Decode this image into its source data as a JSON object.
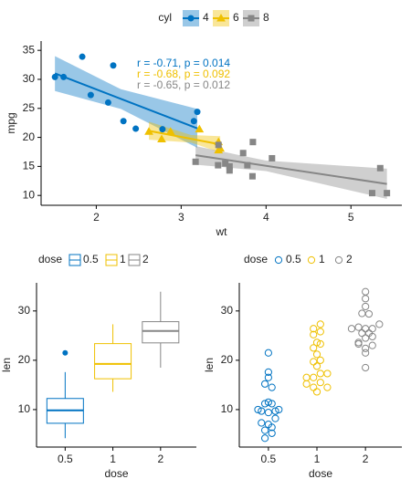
{
  "chart_data": [
    {
      "type": "scatter",
      "legend_title": "cyl",
      "x_label": "wt",
      "y_label": "mpg",
      "xlim": [
        1.35,
        5.6
      ],
      "ylim": [
        8.3,
        36.6
      ],
      "xticks": [
        2,
        3,
        4,
        5
      ],
      "yticks": [
        10,
        15,
        20,
        25,
        30,
        35
      ],
      "series": [
        {
          "name": "4",
          "color": "#0073C2",
          "marker": "circle",
          "annotation": "r = -0.71, p = 0.014",
          "x": [
            2.32,
            3.19,
            3.15,
            2.2,
            1.615,
            1.835,
            2.465,
            1.935,
            2.14,
            1.513,
            2.78
          ],
          "y": [
            22.8,
            24.4,
            22.8,
            32.4,
            30.4,
            33.9,
            21.5,
            27.3,
            26.0,
            30.4,
            21.4
          ],
          "fit": {
            "x": [
              1.513,
              3.19
            ],
            "y": [
              31.03,
              21.56
            ]
          },
          "band": {
            "x": [
              1.513,
              2.29,
              3.19
            ],
            "lower": [
              28.0,
              24.9,
              18.2
            ],
            "upper": [
              34.0,
              28.3,
              24.9
            ]
          }
        },
        {
          "name": "6",
          "color": "#EFC000",
          "marker": "triangle",
          "annotation": "r = -0.68, p = 0.092",
          "x": [
            2.62,
            2.875,
            3.215,
            3.46,
            3.44,
            3.44,
            2.77
          ],
          "y": [
            21.0,
            21.0,
            21.4,
            18.1,
            19.2,
            17.8,
            19.7
          ],
          "fit": {
            "x": [
              2.62,
              3.46
            ],
            "y": [
              21.13,
              18.79
            ]
          },
          "band": {
            "x": [
              2.62,
              3.117,
              3.46
            ],
            "lower": [
              19.6,
              19.1,
              17.4
            ],
            "upper": [
              22.7,
              20.4,
              20.2
            ]
          }
        },
        {
          "name": "8",
          "color": "#868686",
          "marker": "square",
          "annotation": "r = -0.65, p = 0.012",
          "x": [
            3.44,
            3.57,
            4.07,
            3.73,
            3.78,
            5.25,
            5.424,
            5.345,
            3.52,
            3.435,
            3.84,
            3.845,
            3.17,
            3.57
          ],
          "y": [
            18.7,
            14.3,
            16.4,
            17.3,
            15.2,
            10.4,
            10.4,
            14.7,
            15.5,
            15.2,
            13.3,
            19.2,
            15.8,
            15.0
          ],
          "fit": {
            "x": [
              3.17,
              5.424
            ],
            "y": [
              16.92,
              11.98
            ]
          },
          "band": {
            "x": [
              3.17,
              3.999,
              5.424
            ],
            "lower": [
              15.3,
              14.2,
              9.4
            ],
            "upper": [
              18.5,
              16.0,
              14.6
            ]
          }
        }
      ]
    },
    {
      "type": "box",
      "legend_title": "dose",
      "x_label": "dose",
      "y_label": "len",
      "categories": [
        "0.5",
        "1",
        "2"
      ],
      "colors": [
        "#0073C2",
        "#EFC000",
        "#868686"
      ],
      "ylim": [
        2.4,
        35.7
      ],
      "yticks": [
        10,
        20,
        30
      ],
      "boxes": [
        {
          "min": 4.2,
          "q1": 7.225,
          "median": 9.85,
          "q3": 12.25,
          "max": 17.6,
          "outliers": [
            21.5
          ]
        },
        {
          "min": 13.6,
          "q1": 16.25,
          "median": 19.25,
          "q3": 23.375,
          "max": 27.3,
          "outliers": []
        },
        {
          "min": 18.5,
          "q1": 23.525,
          "median": 25.95,
          "q3": 27.825,
          "max": 33.9,
          "outliers": []
        }
      ]
    },
    {
      "type": "dotplot",
      "legend_title": "dose",
      "x_label": "dose",
      "y_label": "len",
      "categories": [
        "0.5",
        "1",
        "2"
      ],
      "colors": [
        "#0073C2",
        "#EFC000",
        "#868686"
      ],
      "ylim": [
        2.4,
        35.7
      ],
      "yticks": [
        10,
        20,
        30
      ],
      "values": [
        [
          4.2,
          11.5,
          7.3,
          5.8,
          6.4,
          10,
          11.2,
          11.2,
          5.2,
          7,
          15.2,
          21.5,
          17.6,
          9.7,
          14.5,
          10,
          8.2,
          9.4,
          16.5,
          9.7
        ],
        [
          16.5,
          16.5,
          15.2,
          17.3,
          22.5,
          17.3,
          13.6,
          14.5,
          18.8,
          15.5,
          19.7,
          23.3,
          23.6,
          26.4,
          20,
          25.2,
          25.8,
          21.2,
          14.5,
          27.3
        ],
        [
          23.6,
          18.5,
          33.9,
          25.5,
          26.4,
          32.5,
          26.7,
          21.5,
          23.3,
          29.5,
          25.5,
          26.4,
          22.4,
          24.5,
          24.8,
          30.9,
          26.4,
          27.3,
          29.4,
          23
        ]
      ]
    }
  ]
}
